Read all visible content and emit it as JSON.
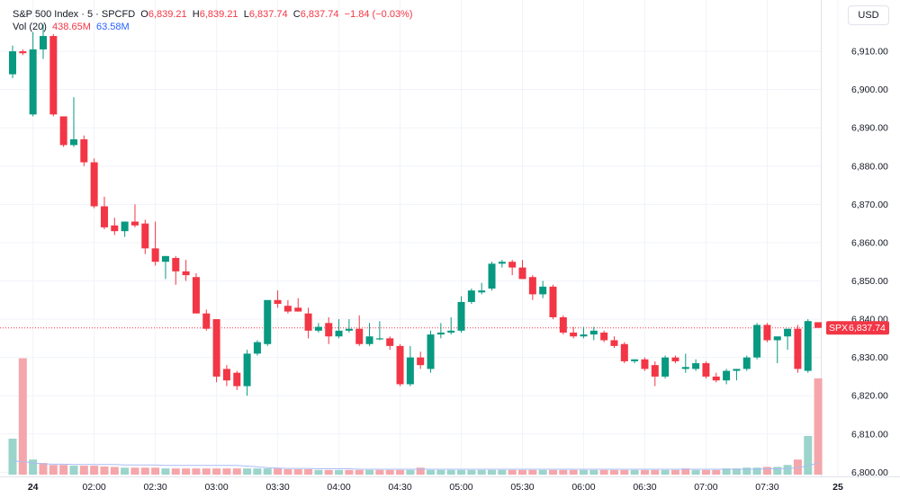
{
  "legend": {
    "symbol": "S&P 500 Index · 5 · SPCFD",
    "o_label": "O",
    "o_value": "6,839.21",
    "h_label": "H",
    "h_value": "6,839.21",
    "l_label": "L",
    "l_value": "6,837.74",
    "c_label": "C",
    "c_value": "6,837.74",
    "change": "−1.84 (−0.03%)",
    "vol_label": "Vol (20)",
    "vol_value": "438.65M",
    "vol_ma_value": "63.58M"
  },
  "currency_button": "USD",
  "price_tag": {
    "symbol": "SPX",
    "value": "6,837.74"
  },
  "colors": {
    "up": "#089981",
    "down": "#f23645",
    "vol_up": "#9bd4cb",
    "vol_down": "#f5a6aa",
    "vol_ma": "#a9bcf5",
    "grid": "#f0f3fa",
    "text": "#131722"
  },
  "chart_data": {
    "type": "candlestick",
    "interval": "5",
    "y_axis": {
      "ticks": [
        "6,800.00",
        "6,810.00",
        "6,820.00",
        "6,830.00",
        "6,840.00",
        "6,850.00",
        "6,860.00",
        "6,870.00",
        "6,880.00",
        "6,890.00",
        "6,900.00",
        "6,910.00"
      ],
      "range": [
        6797.5,
        6922
      ]
    },
    "x_axis": {
      "ticks": [
        "24",
        "02:00",
        "02:30",
        "03:00",
        "03:30",
        "04:00",
        "04:30",
        "05:00",
        "05:30",
        "06:00",
        "06:30",
        "07:00",
        "07:30",
        "25"
      ],
      "ticks_bold": [
        "24",
        "25"
      ]
    },
    "last_price": 6837.74,
    "candles": [
      {
        "o": 6904.0,
        "h": 6911.5,
        "l": 6903.0,
        "c": 6910.0
      },
      {
        "o": 6910.0,
        "h": 6910.5,
        "l": 6909.0,
        "c": 6909.5
      },
      {
        "o": 6893.5,
        "h": 6915.0,
        "l": 6893.0,
        "c": 6910.5
      },
      {
        "o": 6910.5,
        "h": 6917.0,
        "l": 6908.0,
        "c": 6914.0
      },
      {
        "o": 6914.0,
        "h": 6914.5,
        "l": 6893.0,
        "c": 6893.5
      },
      {
        "o": 6893.0,
        "h": 6893.0,
        "l": 6885.0,
        "c": 6885.5
      },
      {
        "o": 6885.5,
        "h": 6898.0,
        "l": 6885.0,
        "c": 6887.0
      },
      {
        "o": 6887.0,
        "h": 6888.0,
        "l": 6880.0,
        "c": 6881.0
      },
      {
        "o": 6881.0,
        "h": 6882.0,
        "l": 6869.0,
        "c": 6869.5
      },
      {
        "o": 6869.5,
        "h": 6872.0,
        "l": 6863.5,
        "c": 6864.0
      },
      {
        "o": 6864.5,
        "h": 6866.5,
        "l": 6862.0,
        "c": 6863.0
      },
      {
        "o": 6863.0,
        "h": 6865.0,
        "l": 6861.5,
        "c": 6865.5
      },
      {
        "o": 6865.5,
        "h": 6870.0,
        "l": 6864.0,
        "c": 6864.5
      },
      {
        "o": 6865.0,
        "h": 6866.0,
        "l": 6857.0,
        "c": 6858.5
      },
      {
        "o": 6858.5,
        "h": 6865.5,
        "l": 6854.0,
        "c": 6855.0
      },
      {
        "o": 6855.0,
        "h": 6856.5,
        "l": 6850.5,
        "c": 6856.5
      },
      {
        "o": 6856.0,
        "h": 6856.5,
        "l": 6849.0,
        "c": 6852.5
      },
      {
        "o": 6852.5,
        "h": 6855.5,
        "l": 6850.0,
        "c": 6851.5
      },
      {
        "o": 6851.0,
        "h": 6852.0,
        "l": 6841.5,
        "c": 6841.5
      },
      {
        "o": 6841.5,
        "h": 6842.5,
        "l": 6837.0,
        "c": 6837.5
      },
      {
        "o": 6840.0,
        "h": 6840.0,
        "l": 6823.5,
        "c": 6825.0
      },
      {
        "o": 6827.0,
        "h": 6828.0,
        "l": 6822.5,
        "c": 6824.0
      },
      {
        "o": 6826.0,
        "h": 6826.5,
        "l": 6821.5,
        "c": 6822.5
      },
      {
        "o": 6822.5,
        "h": 6832.0,
        "l": 6820.0,
        "c": 6831.0
      },
      {
        "o": 6831.0,
        "h": 6834.5,
        "l": 6830.5,
        "c": 6834.0
      },
      {
        "o": 6833.5,
        "h": 6845.0,
        "l": 6833.0,
        "c": 6845.0
      },
      {
        "o": 6845.0,
        "h": 6847.5,
        "l": 6843.0,
        "c": 6844.0
      },
      {
        "o": 6843.5,
        "h": 6845.0,
        "l": 6841.5,
        "c": 6842.0
      },
      {
        "o": 6843.0,
        "h": 6845.5,
        "l": 6842.0,
        "c": 6842.0
      },
      {
        "o": 6841.5,
        "h": 6843.0,
        "l": 6835.0,
        "c": 6837.0
      },
      {
        "o": 6837.0,
        "h": 6839.0,
        "l": 6836.5,
        "c": 6838.0
      },
      {
        "o": 6839.0,
        "h": 6840.5,
        "l": 6833.5,
        "c": 6835.5
      },
      {
        "o": 6835.5,
        "h": 6840.0,
        "l": 6835.0,
        "c": 6837.0
      },
      {
        "o": 6837.0,
        "h": 6840.0,
        "l": 6836.5,
        "c": 6837.5
      },
      {
        "o": 6837.5,
        "h": 6841.0,
        "l": 6833.0,
        "c": 6833.5
      },
      {
        "o": 6833.5,
        "h": 6839.0,
        "l": 6833.0,
        "c": 6835.5
      },
      {
        "o": 6835.0,
        "h": 6839.5,
        "l": 6834.5,
        "c": 6835.0
      },
      {
        "o": 6835.0,
        "h": 6835.5,
        "l": 6832.0,
        "c": 6833.0
      },
      {
        "o": 6833.0,
        "h": 6833.5,
        "l": 6822.5,
        "c": 6823.0
      },
      {
        "o": 6823.0,
        "h": 6833.0,
        "l": 6822.5,
        "c": 6830.0
      },
      {
        "o": 6830.0,
        "h": 6831.5,
        "l": 6827.0,
        "c": 6828.0
      },
      {
        "o": 6827.0,
        "h": 6837.0,
        "l": 6826.0,
        "c": 6836.0
      },
      {
        "o": 6836.0,
        "h": 6839.0,
        "l": 6835.0,
        "c": 6836.5
      },
      {
        "o": 6836.5,
        "h": 6840.5,
        "l": 6836.0,
        "c": 6837.0
      },
      {
        "o": 6837.0,
        "h": 6846.0,
        "l": 6836.5,
        "c": 6844.5
      },
      {
        "o": 6844.5,
        "h": 6848.0,
        "l": 6844.0,
        "c": 6847.5
      },
      {
        "o": 6847.0,
        "h": 6849.5,
        "l": 6846.5,
        "c": 6847.5
      },
      {
        "o": 6848.0,
        "h": 6855.0,
        "l": 6847.5,
        "c": 6854.5
      },
      {
        "o": 6854.5,
        "h": 6855.5,
        "l": 6853.5,
        "c": 6855.0
      },
      {
        "o": 6855.0,
        "h": 6855.5,
        "l": 6851.5,
        "c": 6853.5
      },
      {
        "o": 6853.5,
        "h": 6855.5,
        "l": 6850.5,
        "c": 6850.5
      },
      {
        "o": 6851.0,
        "h": 6851.5,
        "l": 6845.0,
        "c": 6846.5
      },
      {
        "o": 6846.5,
        "h": 6850.0,
        "l": 6845.5,
        "c": 6848.5
      },
      {
        "o": 6848.5,
        "h": 6849.0,
        "l": 6840.0,
        "c": 6840.5
      },
      {
        "o": 6840.5,
        "h": 6841.0,
        "l": 6836.0,
        "c": 6836.5
      },
      {
        "o": 6836.5,
        "h": 6838.0,
        "l": 6835.0,
        "c": 6835.5
      },
      {
        "o": 6835.5,
        "h": 6838.0,
        "l": 6835.0,
        "c": 6836.0
      },
      {
        "o": 6836.0,
        "h": 6838.0,
        "l": 6834.5,
        "c": 6837.0
      },
      {
        "o": 6836.5,
        "h": 6837.0,
        "l": 6834.0,
        "c": 6834.5
      },
      {
        "o": 6834.5,
        "h": 6835.5,
        "l": 6832.5,
        "c": 6833.0
      },
      {
        "o": 6833.5,
        "h": 6834.0,
        "l": 6828.5,
        "c": 6829.0
      },
      {
        "o": 6829.0,
        "h": 6829.5,
        "l": 6828.5,
        "c": 6829.5
      },
      {
        "o": 6829.5,
        "h": 6830.0,
        "l": 6826.5,
        "c": 6827.0
      },
      {
        "o": 6828.0,
        "h": 6829.0,
        "l": 6822.5,
        "c": 6825.0
      },
      {
        "o": 6825.0,
        "h": 6830.5,
        "l": 6824.5,
        "c": 6830.0
      },
      {
        "o": 6830.0,
        "h": 6830.5,
        "l": 6828.5,
        "c": 6829.0
      },
      {
        "o": 6827.0,
        "h": 6831.0,
        "l": 6826.0,
        "c": 6827.5
      },
      {
        "o": 6827.0,
        "h": 6829.5,
        "l": 6826.5,
        "c": 6828.5
      },
      {
        "o": 6828.5,
        "h": 6829.0,
        "l": 6824.5,
        "c": 6825.0
      },
      {
        "o": 6825.0,
        "h": 6826.0,
        "l": 6823.5,
        "c": 6824.0
      },
      {
        "o": 6824.0,
        "h": 6827.0,
        "l": 6823.0,
        "c": 6826.5
      },
      {
        "o": 6826.5,
        "h": 6827.0,
        "l": 6824.0,
        "c": 6827.0
      },
      {
        "o": 6827.0,
        "h": 6830.5,
        "l": 6826.5,
        "c": 6830.0
      },
      {
        "o": 6830.0,
        "h": 6839.0,
        "l": 6829.5,
        "c": 6838.5
      },
      {
        "o": 6838.5,
        "h": 6839.0,
        "l": 6834.0,
        "c": 6834.5
      },
      {
        "o": 6834.5,
        "h": 6835.0,
        "l": 6828.5,
        "c": 6835.5
      },
      {
        "o": 6835.5,
        "h": 6837.0,
        "l": 6832.0,
        "c": 6837.5
      },
      {
        "o": 6837.5,
        "h": 6838.5,
        "l": 6826.0,
        "c": 6827.0
      },
      {
        "o": 6826.5,
        "h": 6840.0,
        "l": 6826.0,
        "c": 6839.5
      },
      {
        "o": 6839.21,
        "h": 6839.21,
        "l": 6837.74,
        "c": 6837.74
      }
    ],
    "volume": [
      {
        "v": 0.93,
        "up": true
      },
      {
        "v": 3.01,
        "up": false
      },
      {
        "v": 0.39,
        "up": true
      },
      {
        "v": 0.3,
        "up": false
      },
      {
        "v": 0.25,
        "up": false
      },
      {
        "v": 0.25,
        "up": false
      },
      {
        "v": 0.23,
        "up": true
      },
      {
        "v": 0.23,
        "up": false
      },
      {
        "v": 0.23,
        "up": false
      },
      {
        "v": 0.21,
        "up": false
      },
      {
        "v": 0.2,
        "up": false
      },
      {
        "v": 0.18,
        "up": true
      },
      {
        "v": 0.18,
        "up": false
      },
      {
        "v": 0.18,
        "up": false
      },
      {
        "v": 0.18,
        "up": false
      },
      {
        "v": 0.16,
        "up": true
      },
      {
        "v": 0.16,
        "up": false
      },
      {
        "v": 0.16,
        "up": false
      },
      {
        "v": 0.16,
        "up": false
      },
      {
        "v": 0.16,
        "up": false
      },
      {
        "v": 0.16,
        "up": false
      },
      {
        "v": 0.16,
        "up": false
      },
      {
        "v": 0.16,
        "up": false
      },
      {
        "v": 0.16,
        "up": true
      },
      {
        "v": 0.16,
        "up": true
      },
      {
        "v": 0.16,
        "up": true
      },
      {
        "v": 0.16,
        "up": false
      },
      {
        "v": 0.14,
        "up": false
      },
      {
        "v": 0.14,
        "up": false
      },
      {
        "v": 0.14,
        "up": false
      },
      {
        "v": 0.12,
        "up": true
      },
      {
        "v": 0.12,
        "up": false
      },
      {
        "v": 0.12,
        "up": true
      },
      {
        "v": 0.12,
        "up": false
      },
      {
        "v": 0.12,
        "up": false
      },
      {
        "v": 0.12,
        "up": true
      },
      {
        "v": 0.12,
        "up": false
      },
      {
        "v": 0.12,
        "up": false
      },
      {
        "v": 0.12,
        "up": false
      },
      {
        "v": 0.12,
        "up": true
      },
      {
        "v": 0.18,
        "up": false
      },
      {
        "v": 0.12,
        "up": true
      },
      {
        "v": 0.12,
        "up": true
      },
      {
        "v": 0.12,
        "up": true
      },
      {
        "v": 0.12,
        "up": true
      },
      {
        "v": 0.12,
        "up": true
      },
      {
        "v": 0.12,
        "up": true
      },
      {
        "v": 0.12,
        "up": true
      },
      {
        "v": 0.12,
        "up": true
      },
      {
        "v": 0.12,
        "up": false
      },
      {
        "v": 0.12,
        "up": false
      },
      {
        "v": 0.12,
        "up": false
      },
      {
        "v": 0.12,
        "up": true
      },
      {
        "v": 0.12,
        "up": false
      },
      {
        "v": 0.12,
        "up": false
      },
      {
        "v": 0.12,
        "up": false
      },
      {
        "v": 0.12,
        "up": true
      },
      {
        "v": 0.12,
        "up": true
      },
      {
        "v": 0.12,
        "up": false
      },
      {
        "v": 0.12,
        "up": false
      },
      {
        "v": 0.12,
        "up": false
      },
      {
        "v": 0.12,
        "up": true
      },
      {
        "v": 0.12,
        "up": false
      },
      {
        "v": 0.12,
        "up": false
      },
      {
        "v": 0.12,
        "up": true
      },
      {
        "v": 0.12,
        "up": false
      },
      {
        "v": 0.16,
        "up": false
      },
      {
        "v": 0.12,
        "up": true
      },
      {
        "v": 0.12,
        "up": false
      },
      {
        "v": 0.12,
        "up": false
      },
      {
        "v": 0.16,
        "up": true
      },
      {
        "v": 0.16,
        "up": true
      },
      {
        "v": 0.18,
        "up": true
      },
      {
        "v": 0.18,
        "up": true
      },
      {
        "v": 0.2,
        "up": false
      },
      {
        "v": 0.2,
        "up": true
      },
      {
        "v": 0.25,
        "up": true
      },
      {
        "v": 0.39,
        "up": false
      },
      {
        "v": 1.0,
        "up": true
      },
      {
        "v": 2.49,
        "up": false
      }
    ],
    "volume_ma": [
      0.35,
      0.34,
      0.3,
      0.28,
      0.27,
      0.27,
      0.26,
      0.26,
      0.26,
      0.26,
      0.26,
      0.25,
      0.25,
      0.25,
      0.25,
      0.24,
      0.24,
      0.24,
      0.24,
      0.24,
      0.24,
      0.24,
      0.24,
      0.22,
      0.2,
      0.18,
      0.17,
      0.16,
      0.16,
      0.16,
      0.15,
      0.15,
      0.15,
      0.15,
      0.14,
      0.14,
      0.14,
      0.14,
      0.14,
      0.14,
      0.14,
      0.14,
      0.14,
      0.14,
      0.14,
      0.14,
      0.14,
      0.14,
      0.14,
      0.14,
      0.14,
      0.14,
      0.14,
      0.14,
      0.14,
      0.14,
      0.14,
      0.14,
      0.14,
      0.14,
      0.14,
      0.14,
      0.14,
      0.14,
      0.14,
      0.14,
      0.14,
      0.14,
      0.14,
      0.14,
      0.14,
      0.14,
      0.14,
      0.14,
      0.15,
      0.15,
      0.16,
      0.18,
      0.23,
      0.3
    ]
  }
}
